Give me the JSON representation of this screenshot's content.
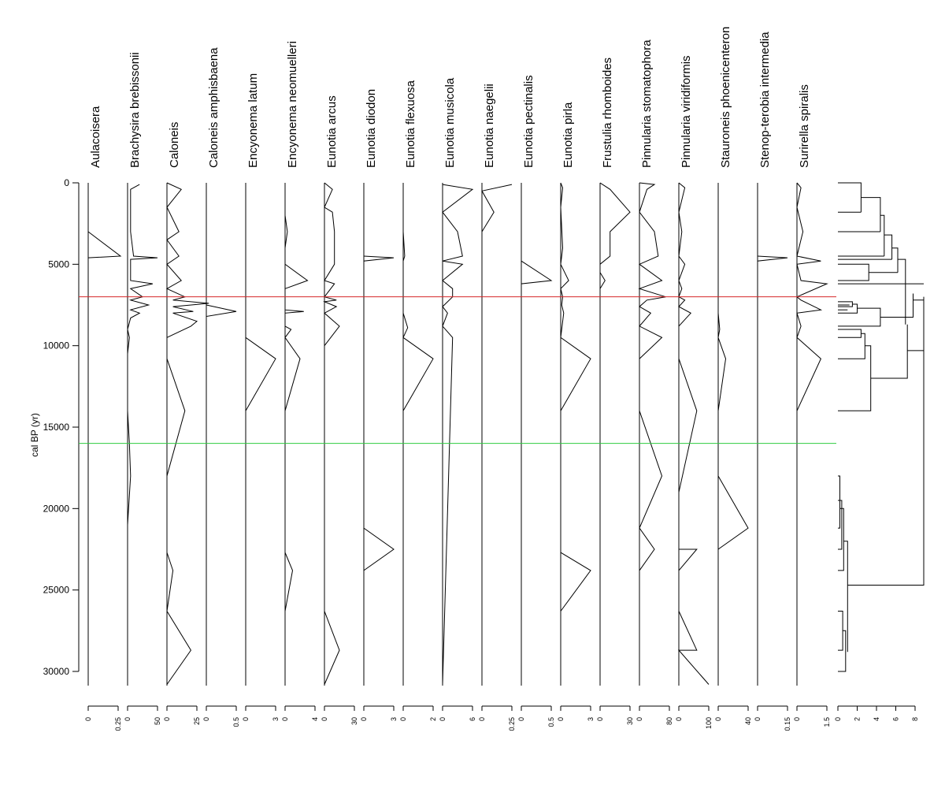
{
  "chart_data": {
    "type": "line",
    "ylabel": "cal BP (yr)",
    "ylim": [
      0,
      30800
    ],
    "yticks": [
      0,
      5000,
      10000,
      15000,
      20000,
      25000,
      30000
    ],
    "y_reversed": true,
    "hlines": [
      {
        "y": 7000,
        "color": "#d62728"
      },
      {
        "y": 16000,
        "color": "#2ecc40"
      }
    ],
    "series": [
      {
        "name": "Aulacoisera",
        "xlim": [
          0,
          0.25
        ],
        "ticks": [
          "0",
          "0.25"
        ],
        "points": [
          [
            0,
            3000
          ],
          [
            0.27,
            4500
          ],
          [
            0,
            4600
          ],
          [
            0,
            30800
          ]
        ]
      },
      {
        "name": "Brachysira  brebissonii",
        "xlim": [
          0,
          50
        ],
        "ticks": [
          "0",
          "50"
        ],
        "points": [
          [
            20,
            100
          ],
          [
            5,
            400
          ],
          [
            5,
            3000
          ],
          [
            10,
            4500
          ],
          [
            50,
            4600
          ],
          [
            5,
            4700
          ],
          [
            5,
            6000
          ],
          [
            42,
            6200
          ],
          [
            5,
            6500
          ],
          [
            25,
            7000
          ],
          [
            5,
            7200
          ],
          [
            35,
            7500
          ],
          [
            5,
            7800
          ],
          [
            20,
            8000
          ],
          [
            5,
            8300
          ],
          [
            0,
            9000
          ],
          [
            3,
            9500
          ],
          [
            0,
            10500
          ],
          [
            0,
            14000
          ],
          [
            3,
            16000
          ],
          [
            5,
            18000
          ],
          [
            0,
            21000
          ],
          [
            0,
            30800
          ]
        ]
      },
      {
        "name": "Caloneis",
        "xlim": [
          0,
          25
        ],
        "ticks": [
          "0",
          "25"
        ],
        "points": [
          [
            0,
            0
          ],
          [
            12,
            400
          ],
          [
            0,
            1500
          ],
          [
            10,
            3000
          ],
          [
            0,
            3500
          ],
          [
            10,
            4500
          ],
          [
            0,
            5000
          ],
          [
            12,
            6000
          ],
          [
            0,
            6500
          ],
          [
            15,
            7000
          ],
          [
            5,
            7200
          ],
          [
            35,
            7400
          ],
          [
            5,
            7600
          ],
          [
            22,
            7900
          ],
          [
            5,
            8000
          ],
          [
            25,
            8500
          ],
          [
            20,
            8800
          ],
          [
            0,
            9500
          ],
          [
            0,
            10800
          ],
          [
            15,
            14000
          ],
          [
            0,
            18000
          ],
          [
            0,
            22700
          ],
          [
            5,
            23800
          ],
          [
            0,
            26300
          ],
          [
            20,
            28700
          ],
          [
            0,
            30800
          ]
        ]
      },
      {
        "name": "Caloneis amphisbaena",
        "xlim": [
          0,
          0.5
        ],
        "ticks": [
          "0",
          "0.5"
        ],
        "points": [
          [
            0,
            7500
          ],
          [
            0.5,
            7900
          ],
          [
            0,
            8200
          ],
          [
            0,
            30800
          ]
        ]
      },
      {
        "name": "Encyonema latum",
        "xlim": [
          0,
          3
        ],
        "ticks": [
          "0",
          "3"
        ],
        "points": [
          [
            0,
            9500
          ],
          [
            3,
            10800
          ],
          [
            0,
            14000
          ],
          [
            0,
            30800
          ]
        ]
      },
      {
        "name": "Encyonema neomuelleri",
        "xlim": [
          0,
          4
        ],
        "ticks": [
          "0",
          "4"
        ],
        "points": [
          [
            0,
            2000
          ],
          [
            0.3,
            3000
          ],
          [
            0,
            4000
          ],
          [
            0,
            5000
          ],
          [
            3,
            6000
          ],
          [
            0,
            6500
          ],
          [
            0,
            7800
          ],
          [
            2.5,
            7900
          ],
          [
            0,
            8000
          ],
          [
            0,
            8800
          ],
          [
            0.8,
            9000
          ],
          [
            0,
            9500
          ],
          [
            2,
            10800
          ],
          [
            0,
            14000
          ],
          [
            0,
            22700
          ],
          [
            1,
            23800
          ],
          [
            0,
            26300
          ],
          [
            0,
            30800
          ]
        ]
      },
      {
        "name": "Eunotia arcus",
        "xlim": [
          0,
          30
        ],
        "ticks": [
          "0",
          "30"
        ],
        "points": [
          [
            0,
            0
          ],
          [
            8,
            400
          ],
          [
            0,
            1500
          ],
          [
            8,
            1800
          ],
          [
            10,
            3000
          ],
          [
            10,
            4500
          ],
          [
            10,
            5000
          ],
          [
            0,
            6000
          ],
          [
            10,
            6200
          ],
          [
            0,
            7000
          ],
          [
            12,
            7200
          ],
          [
            0,
            7300
          ],
          [
            12,
            7600
          ],
          [
            0,
            8000
          ],
          [
            15,
            8800
          ],
          [
            0,
            10000
          ],
          [
            0,
            16000
          ],
          [
            0,
            19500
          ],
          [
            0,
            26300
          ],
          [
            15,
            28700
          ],
          [
            0,
            30800
          ]
        ]
      },
      {
        "name": "Eunotia diodon",
        "xlim": [
          0,
          3
        ],
        "ticks": [
          "0",
          "3"
        ],
        "points": [
          [
            0,
            4500
          ],
          [
            3,
            4600
          ],
          [
            0,
            4800
          ],
          [
            0,
            21200
          ],
          [
            3,
            22500
          ],
          [
            0,
            23800
          ],
          [
            0,
            30800
          ]
        ]
      },
      {
        "name": "Eunotia flexuosa",
        "xlim": [
          0,
          2
        ],
        "ticks": [
          "0",
          "2"
        ],
        "points": [
          [
            0,
            3000
          ],
          [
            0.1,
            4500
          ],
          [
            0,
            4800
          ],
          [
            0,
            8000
          ],
          [
            0.3,
            8900
          ],
          [
            0,
            9500
          ],
          [
            2,
            10800
          ],
          [
            0,
            14000
          ],
          [
            0,
            30800
          ]
        ]
      },
      {
        "name": "Eunotia musicola",
        "xlim": [
          0,
          6
        ],
        "ticks": [
          "0",
          "6"
        ],
        "points": [
          [
            0,
            100
          ],
          [
            6,
            400
          ],
          [
            0,
            1800
          ],
          [
            3,
            3000
          ],
          [
            4,
            4500
          ],
          [
            0,
            4800
          ],
          [
            4,
            5000
          ],
          [
            0,
            6000
          ],
          [
            2,
            6500
          ],
          [
            2,
            7000
          ],
          [
            0,
            7600
          ],
          [
            1,
            8000
          ],
          [
            0,
            8800
          ],
          [
            2,
            9500
          ],
          [
            0,
            30800
          ]
        ]
      },
      {
        "name": "Eunotia naegelii",
        "xlim": [
          0,
          0.25
        ],
        "ticks": [
          "0",
          "0.25"
        ],
        "points": [
          [
            0.25,
            100
          ],
          [
            0,
            500
          ],
          [
            0.1,
            1800
          ],
          [
            0,
            3000
          ],
          [
            0,
            30800
          ]
        ]
      },
      {
        "name": "Eunotia pectinalis",
        "xlim": [
          0,
          0.5
        ],
        "ticks": [
          "0",
          "0.5"
        ],
        "points": [
          [
            0,
            4800
          ],
          [
            0.5,
            6000
          ],
          [
            0,
            6200
          ],
          [
            0,
            30800
          ]
        ]
      },
      {
        "name": "Eunotia pirla",
        "xlim": [
          0,
          3
        ],
        "ticks": [
          "0",
          "3"
        ],
        "points": [
          [
            0,
            0
          ],
          [
            0.2,
            300
          ],
          [
            0,
            1500
          ],
          [
            0.2,
            4000
          ],
          [
            0.1,
            4500
          ],
          [
            0,
            5000
          ],
          [
            0.8,
            6000
          ],
          [
            0,
            6500
          ],
          [
            0.2,
            7000
          ],
          [
            0.1,
            7500
          ],
          [
            0.3,
            8000
          ],
          [
            0,
            9500
          ],
          [
            3,
            10800
          ],
          [
            0,
            14000
          ],
          [
            0,
            22700
          ],
          [
            3,
            23800
          ],
          [
            0,
            26300
          ],
          [
            0,
            30800
          ]
        ]
      },
      {
        "name": "Frustulia  rhomboides",
        "xlim": [
          0,
          30
        ],
        "ticks": [
          "0",
          "30"
        ],
        "points": [
          [
            0,
            0
          ],
          [
            10,
            400
          ],
          [
            30,
            1800
          ],
          [
            10,
            3000
          ],
          [
            10,
            4500
          ],
          [
            0,
            5000
          ],
          [
            0,
            5500
          ],
          [
            5,
            6000
          ],
          [
            0,
            6500
          ],
          [
            0,
            30800
          ]
        ]
      },
      {
        "name": "Pinnularia stomatophora",
        "xlim": [
          0,
          80
        ],
        "ticks": [
          "0",
          "80"
        ],
        "points": [
          [
            0,
            0
          ],
          [
            40,
            100
          ],
          [
            20,
            400
          ],
          [
            0,
            1800
          ],
          [
            40,
            3000
          ],
          [
            50,
            4500
          ],
          [
            0,
            5000
          ],
          [
            60,
            6000
          ],
          [
            0,
            6500
          ],
          [
            70,
            7000
          ],
          [
            20,
            7200
          ],
          [
            0,
            7600
          ],
          [
            30,
            8000
          ],
          [
            0,
            8800
          ],
          [
            60,
            9500
          ],
          [
            0,
            10800
          ],
          [
            0,
            14000
          ],
          [
            60,
            18000
          ],
          [
            0,
            21200
          ],
          [
            40,
            22500
          ],
          [
            0,
            23800
          ],
          [
            0,
            26300
          ],
          [
            0,
            28700
          ],
          [
            0,
            30800
          ]
        ]
      },
      {
        "name": "Pinnularia viridiformis",
        "xlim": [
          0,
          100
        ],
        "ticks": [
          "0",
          "100"
        ],
        "points": [
          [
            0,
            0
          ],
          [
            20,
            300
          ],
          [
            0,
            1800
          ],
          [
            10,
            3000
          ],
          [
            0,
            4500
          ],
          [
            20,
            5000
          ],
          [
            0,
            6000
          ],
          [
            10,
            6500
          ],
          [
            0,
            7000
          ],
          [
            20,
            7200
          ],
          [
            0,
            7600
          ],
          [
            40,
            8000
          ],
          [
            0,
            8800
          ],
          [
            0,
            9500
          ],
          [
            0,
            10800
          ],
          [
            60,
            14000
          ],
          [
            0,
            19000
          ],
          [
            0,
            21200
          ],
          [
            0,
            22500
          ],
          [
            60,
            22500
          ],
          [
            0,
            23800
          ],
          [
            0,
            26300
          ],
          [
            60,
            28700
          ],
          [
            0,
            28700
          ],
          [
            100,
            30800
          ]
        ]
      },
      {
        "name": "Stauroneis phoenicenteron",
        "xlim": [
          0,
          40
        ],
        "ticks": [
          "0",
          "40"
        ],
        "points": [
          [
            0,
            7200
          ],
          [
            0,
            8000
          ],
          [
            2,
            9000
          ],
          [
            0,
            9500
          ],
          [
            10,
            10800
          ],
          [
            0,
            14000
          ],
          [
            0,
            18000
          ],
          [
            40,
            21200
          ],
          [
            0,
            22500
          ],
          [
            0,
            30800
          ]
        ]
      },
      {
        "name": "Stenop-terobia intermedia",
        "xlim": [
          0,
          0.15
        ],
        "ticks": [
          "0",
          "0.15"
        ],
        "points": [
          [
            0,
            4500
          ],
          [
            0.15,
            4600
          ],
          [
            0,
            4800
          ],
          [
            0,
            30800
          ]
        ]
      },
      {
        "name": "Surirella spiralis",
        "xlim": [
          0,
          1.5
        ],
        "ticks": [
          "0",
          "1.5"
        ],
        "points": [
          [
            0,
            0
          ],
          [
            0.2,
            300
          ],
          [
            0,
            1500
          ],
          [
            0.3,
            3000
          ],
          [
            0,
            4500
          ],
          [
            1.2,
            4800
          ],
          [
            0,
            5000
          ],
          [
            0.2,
            6000
          ],
          [
            1.5,
            6200
          ],
          [
            0,
            7000
          ],
          [
            0.2,
            7200
          ],
          [
            1.2,
            7800
          ],
          [
            0,
            8000
          ],
          [
            0.2,
            8800
          ],
          [
            0,
            9500
          ],
          [
            1.2,
            10800
          ],
          [
            0,
            14000
          ],
          [
            0,
            30800
          ]
        ]
      }
    ],
    "dendrogram": {
      "xlim": [
        0,
        8
      ],
      "ticks": [
        "0",
        "2",
        "4",
        "6",
        "8"
      ]
    }
  }
}
